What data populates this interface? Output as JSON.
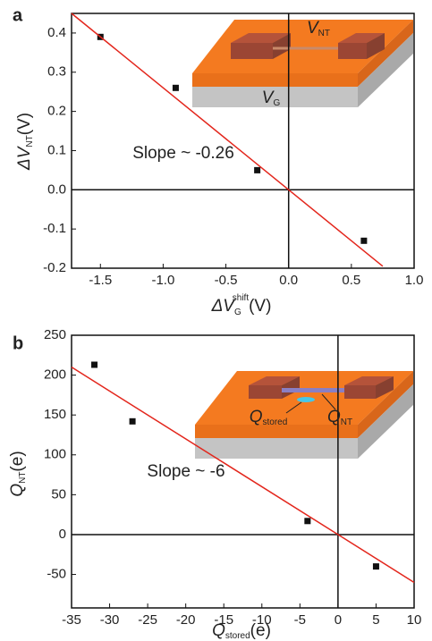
{
  "chart_data": [
    {
      "type": "scatter",
      "panel_label": "a",
      "annotation": "Slope ~ -0.26",
      "x_label": {
        "main": "ΔV",
        "sub": "G",
        "sup": "shift",
        "unit": "(V)"
      },
      "y_label": {
        "main": "ΔV",
        "sub": "NT",
        "unit": "(V)"
      },
      "inset_labels": {
        "top": {
          "main": "V",
          "sub": "NT"
        },
        "bottom": {
          "main": "V",
          "sub": "G"
        }
      },
      "xlim": [
        -1.73,
        1.0
      ],
      "ylim": [
        -0.2,
        0.45
      ],
      "xticks": [
        -1.5,
        {
          "value": -1,
          "label": "-1.0"
        },
        -0.5,
        {
          "value": 0,
          "label": "0.0"
        },
        0.5,
        {
          "value": 1,
          "label": "1.0"
        }
      ],
      "yticks": [
        -0.2,
        -0.1,
        {
          "value": 0,
          "label": "0.0"
        },
        0.1,
        0.2,
        0.3,
        0.4
      ],
      "series": [
        {
          "type": "scatter",
          "color": "#111111",
          "x": [
            -1.5,
            -0.9,
            -0.25,
            0.6
          ],
          "values": [
            0.39,
            0.26,
            0.05,
            -0.13
          ]
        },
        {
          "type": "line",
          "color": "#e3261c",
          "x": [
            -1.73,
            0.75
          ],
          "values": [
            0.45,
            -0.195
          ]
        }
      ]
    },
    {
      "type": "scatter",
      "panel_label": "b",
      "annotation": "Slope ~ -6",
      "x_label": {
        "main": "Q",
        "sub": "stored",
        "unit": "(e)"
      },
      "y_label": {
        "main": "Q",
        "sub": "NT",
        "unit": "(e)"
      },
      "inset_labels": {
        "left": {
          "main": "Q",
          "sub": "stored"
        },
        "right": {
          "main": "Q",
          "sub": "NT"
        }
      },
      "xlim": [
        -35,
        10
      ],
      "ylim": [
        -92,
        250
      ],
      "xticks": [
        -35,
        -30,
        -25,
        -20,
        -15,
        -10,
        -5,
        0,
        5,
        10
      ],
      "yticks": [
        -50,
        0,
        50,
        100,
        150,
        200,
        250
      ],
      "series": [
        {
          "type": "scatter",
          "color": "#111111",
          "x": [
            -32,
            -27,
            -4,
            5
          ],
          "values": [
            213,
            142,
            17,
            -40
          ]
        },
        {
          "type": "line",
          "color": "#e3261c",
          "x": [
            -35,
            10
          ],
          "values": [
            210,
            -60
          ]
        }
      ]
    }
  ]
}
